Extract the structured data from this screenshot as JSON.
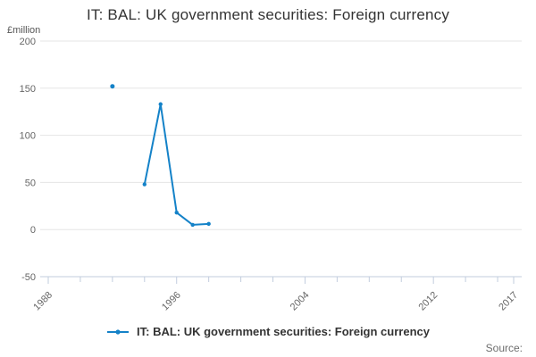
{
  "title": "IT: BAL: UK government securities: Foreign currency",
  "y_axis_unit": "£million",
  "legend": {
    "label": "IT: BAL: UK government securities: Foreign currency"
  },
  "source_label": "Source:",
  "colors": {
    "line": "#1482c8",
    "grid": "#e5e5e5",
    "axis": "#c2cdde",
    "title_text": "#333333",
    "tick_text": "#666666",
    "unit_text": "#555555",
    "legend_text": "#333333",
    "source_text": "#6e6e6e",
    "background": "#ffffff"
  },
  "chart_data": {
    "type": "line",
    "title": "IT: BAL: UK government securities: Foreign currency",
    "ylabel": "£million",
    "xlabel": "",
    "xlim": [
      1988,
      2017
    ],
    "ylim": [
      -50,
      200
    ],
    "y_ticks": [
      200,
      150,
      100,
      50,
      0,
      -50
    ],
    "x_major_ticks": [
      1988,
      1996,
      2004,
      2012,
      2017
    ],
    "x_minor_ticks": [
      1990,
      1992,
      1994,
      1998,
      2000,
      2002,
      2006,
      2008,
      2010,
      2014,
      2016
    ],
    "grid": true,
    "legend_position": "bottom",
    "series": [
      {
        "name": "IT: BAL: UK government securities: Foreign currency",
        "points": [
          {
            "x": 1992,
            "y": 152
          },
          {
            "x": 1994,
            "y": 48
          },
          {
            "x": 1995,
            "y": 133
          },
          {
            "x": 1996,
            "y": 18
          },
          {
            "x": 1997,
            "y": 5
          },
          {
            "x": 1998,
            "y": 6
          }
        ]
      }
    ]
  }
}
